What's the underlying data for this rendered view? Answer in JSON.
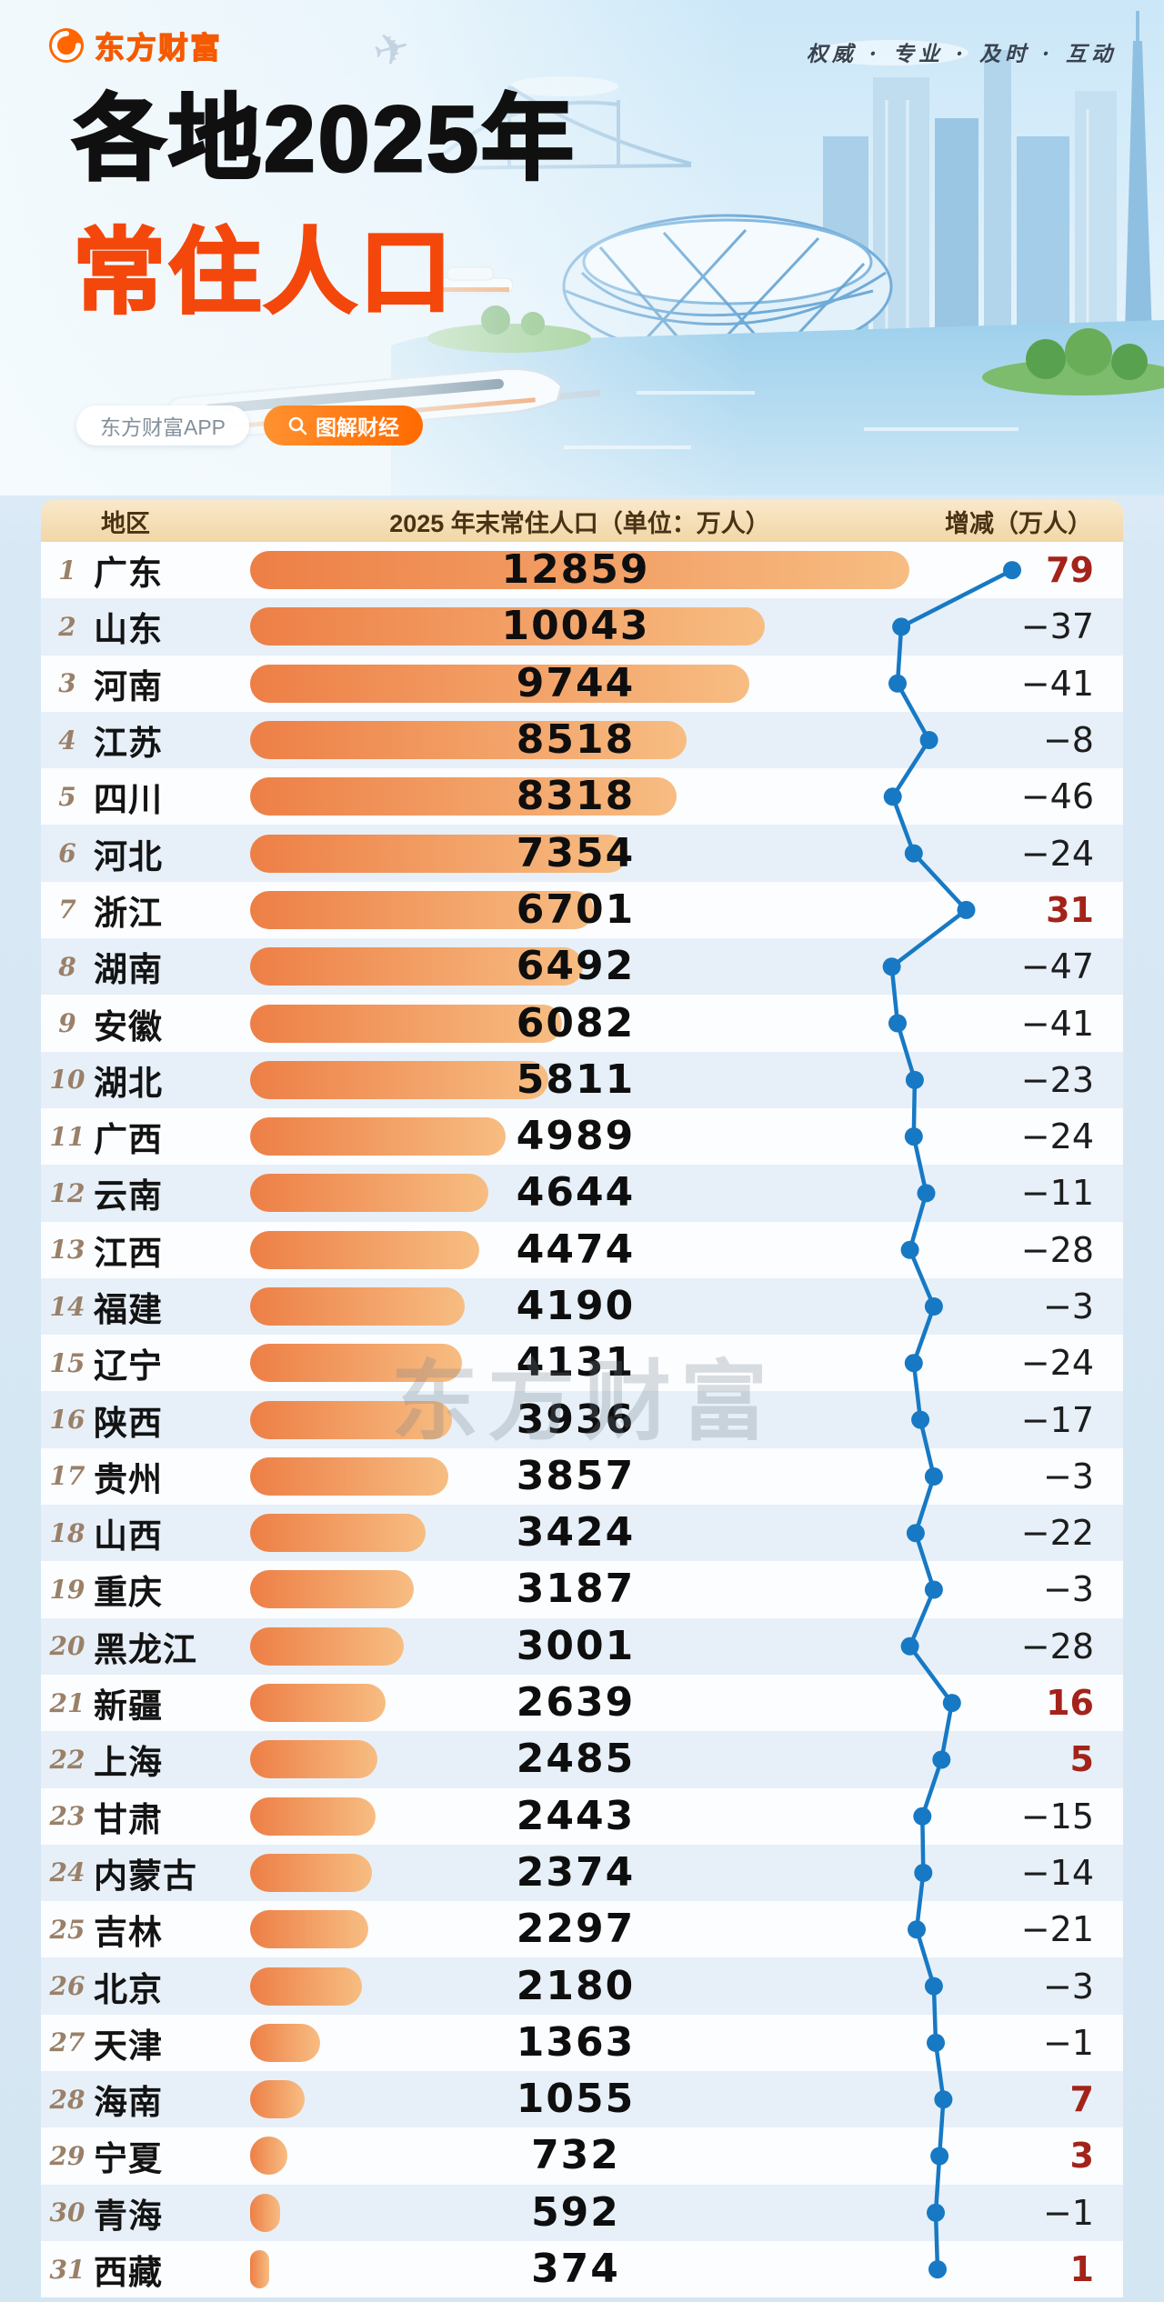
{
  "brand": {
    "logo_text": "东方财富",
    "slogan": "权威 · 专业 · 及时 · 互动"
  },
  "title": {
    "line1": "各地2025年",
    "line2": "常住人口"
  },
  "buttons": {
    "app": "东方财富APP",
    "explain": "图解财经"
  },
  "watermark": "东方财富",
  "table": {
    "headers": {
      "region": "地区",
      "population": "2025 年末常住人口（单位：万人）",
      "change": "增减（万人）"
    }
  },
  "colors": {
    "accent": "#f4470b",
    "bar_start": "#ed7f46",
    "bar_end": "#f7bd82",
    "line": "#1779c4",
    "positive": "#a3231a",
    "negative": "#1d1d1d"
  },
  "chart_data": {
    "type": "bar",
    "title": "各地2025年常住人口",
    "unit": "万人",
    "legend_position": "none",
    "max_population": 12859,
    "series": [
      {
        "name": "2025 年末常住人口（万人）",
        "type": "bar"
      },
      {
        "name": "增减（万人）",
        "type": "line"
      }
    ],
    "rows": [
      {
        "rank": 1,
        "region": "广东",
        "population": 12859,
        "change": 79
      },
      {
        "rank": 2,
        "region": "山东",
        "population": 10043,
        "change": -37
      },
      {
        "rank": 3,
        "region": "河南",
        "population": 9744,
        "change": -41
      },
      {
        "rank": 4,
        "region": "江苏",
        "population": 8518,
        "change": -8
      },
      {
        "rank": 5,
        "region": "四川",
        "population": 8318,
        "change": -46
      },
      {
        "rank": 6,
        "region": "河北",
        "population": 7354,
        "change": -24
      },
      {
        "rank": 7,
        "region": "浙江",
        "population": 6701,
        "change": 31
      },
      {
        "rank": 8,
        "region": "湖南",
        "population": 6492,
        "change": -47
      },
      {
        "rank": 9,
        "region": "安徽",
        "population": 6082,
        "change": -41
      },
      {
        "rank": 10,
        "region": "湖北",
        "population": 5811,
        "change": -23
      },
      {
        "rank": 11,
        "region": "广西",
        "population": 4989,
        "change": -24
      },
      {
        "rank": 12,
        "region": "云南",
        "population": 4644,
        "change": -11
      },
      {
        "rank": 13,
        "region": "江西",
        "population": 4474,
        "change": -28
      },
      {
        "rank": 14,
        "region": "福建",
        "population": 4190,
        "change": -3
      },
      {
        "rank": 15,
        "region": "辽宁",
        "population": 4131,
        "change": -24
      },
      {
        "rank": 16,
        "region": "陕西",
        "population": 3936,
        "change": -17
      },
      {
        "rank": 17,
        "region": "贵州",
        "population": 3857,
        "change": -3
      },
      {
        "rank": 18,
        "region": "山西",
        "population": 3424,
        "change": -22
      },
      {
        "rank": 19,
        "region": "重庆",
        "population": 3187,
        "change": -3
      },
      {
        "rank": 20,
        "region": "黑龙江",
        "population": 3001,
        "change": -28
      },
      {
        "rank": 21,
        "region": "新疆",
        "population": 2639,
        "change": 16
      },
      {
        "rank": 22,
        "region": "上海",
        "population": 2485,
        "change": 5
      },
      {
        "rank": 23,
        "region": "甘肃",
        "population": 2443,
        "change": -15
      },
      {
        "rank": 24,
        "region": "内蒙古",
        "population": 2374,
        "change": -14
      },
      {
        "rank": 25,
        "region": "吉林",
        "population": 2297,
        "change": -21
      },
      {
        "rank": 26,
        "region": "北京",
        "population": 2180,
        "change": -3
      },
      {
        "rank": 27,
        "region": "天津",
        "population": 1363,
        "change": -1
      },
      {
        "rank": 28,
        "region": "海南",
        "population": 1055,
        "change": 7
      },
      {
        "rank": 29,
        "region": "宁夏",
        "population": 732,
        "change": 3
      },
      {
        "rank": 30,
        "region": "青海",
        "population": 592,
        "change": -1
      },
      {
        "rank": 31,
        "region": "西藏",
        "population": 374,
        "change": 1
      }
    ]
  }
}
